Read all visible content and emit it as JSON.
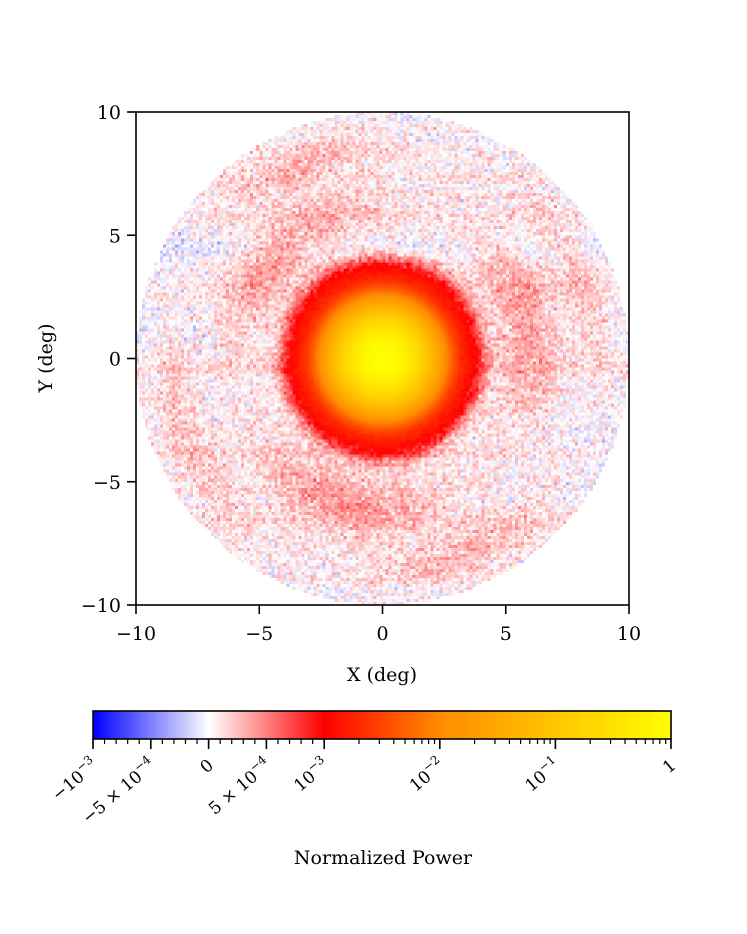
{
  "chart_data": {
    "type": "heatmap",
    "title": "",
    "xlabel": "X (deg)",
    "ylabel": "Y (deg)",
    "xlim": [
      -10,
      10
    ],
    "ylim": [
      -10,
      10
    ],
    "xticks": [
      -10,
      -5,
      0,
      5,
      10
    ],
    "yticks": [
      -10,
      -5,
      0,
      5,
      10
    ],
    "xtick_labels": [
      "−10",
      "−5",
      "0",
      "5",
      "10"
    ],
    "ytick_labels": [
      "−10",
      "−5",
      "0",
      "5",
      "10"
    ],
    "grid": false,
    "field_of_view_radius_deg": 10,
    "features": {
      "main_beam": {
        "center": [
          0,
          0
        ],
        "core_radius_deg": 1.8,
        "core_peak": 1,
        "shoulder_radius_deg": 4,
        "shoulder_level": 0.001
      },
      "sidelobe_ring": {
        "radius_deg": 6,
        "width_deg": 1.2,
        "level": 0.0004
      },
      "background_noise": {
        "amplitude": 0.0003
      }
    },
    "colorbar": {
      "label": "Normalized Power",
      "position": "bottom",
      "scale": "symmetric-log",
      "range": [
        -0.001,
        1
      ],
      "linear_threshold": 0.001,
      "colors": {
        "min": "#0000ff",
        "mid": "#ffffff",
        "threshold": "#ff0000",
        "upper": "#ff8c00",
        "max": "#ffff00"
      },
      "ticks": [
        {
          "value": -0.001,
          "label": "−10",
          "sup": "−3"
        },
        {
          "value": -0.0005,
          "label": "−5 × 10",
          "sup": "−4"
        },
        {
          "value": 0,
          "label": "0",
          "sup": ""
        },
        {
          "value": 0.0005,
          "label": "5 × 10",
          "sup": "−4"
        },
        {
          "value": 0.001,
          "label": "10",
          "sup": "−3"
        },
        {
          "value": 0.01,
          "label": "10",
          "sup": "−2"
        },
        {
          "value": 0.1,
          "label": "10",
          "sup": "−1"
        },
        {
          "value": 1,
          "label": "1",
          "sup": ""
        }
      ]
    }
  }
}
